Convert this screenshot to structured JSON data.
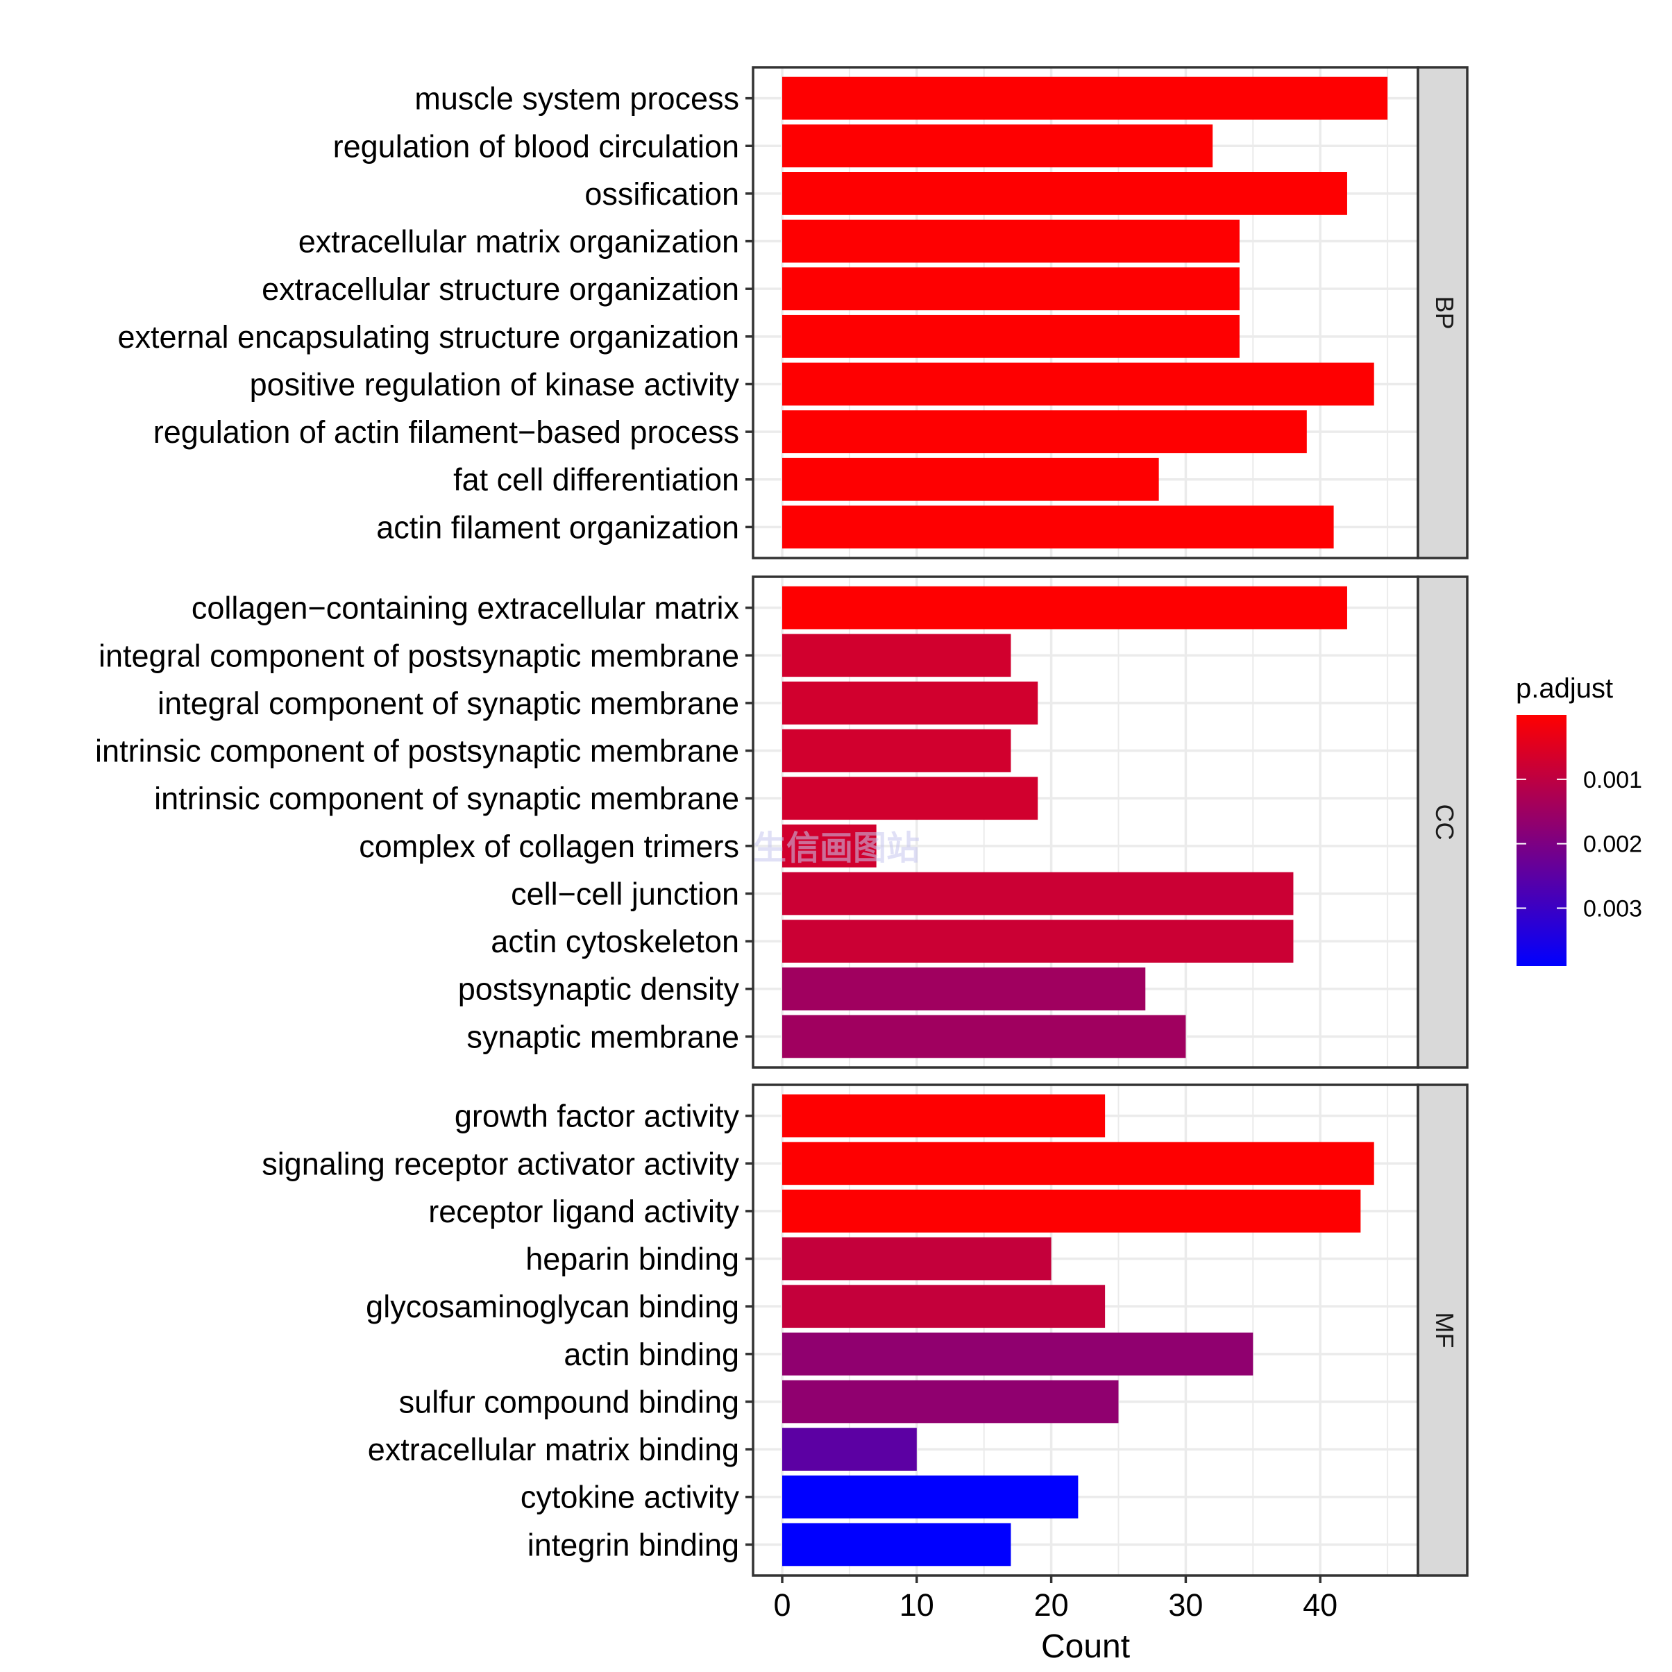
{
  "chart_data": {
    "type": "bar",
    "orientation": "horizontal",
    "xlabel": "Count",
    "ylabel": "",
    "xlim": [
      0,
      47.5
    ],
    "xticks": [
      0,
      10,
      20,
      30,
      40
    ],
    "grid": true,
    "legend": {
      "title": "p.adjust",
      "placement": "right",
      "type": "colorbar",
      "low_color": "#FF0000",
      "high_color": "#0000FF",
      "range": [
        0.0,
        0.0039
      ],
      "ticks": [
        0.001,
        0.002,
        0.003
      ],
      "tick_labels": [
        "0.001",
        "0.002",
        "0.003"
      ]
    },
    "facets": [
      {
        "name": "BP",
        "categories": [
          "muscle system process",
          "regulation of blood circulation",
          "ossification",
          "extracellular matrix organization",
          "extracellular structure organization",
          "external encapsulating structure organization",
          "positive regulation of kinase activity",
          "regulation of actin filament−based process",
          "fat cell differentiation",
          "actin filament organization"
        ],
        "values": [
          45,
          32,
          42,
          34,
          34,
          34,
          44,
          39,
          28,
          41
        ],
        "p_adjust": [
          1e-05,
          1e-05,
          1e-05,
          1e-05,
          1e-05,
          1e-05,
          1e-05,
          1e-05,
          1e-05,
          1e-05
        ]
      },
      {
        "name": "CC",
        "categories": [
          "collagen−containing extracellular matrix",
          "integral component of postsynaptic membrane",
          "integral component of synaptic membrane",
          "intrinsic component of postsynaptic membrane",
          "intrinsic component of synaptic membrane",
          "complex of collagen trimers",
          "cell−cell junction",
          "actin cytoskeleton",
          "postsynaptic density",
          "synaptic membrane"
        ],
        "values": [
          42,
          17,
          19,
          17,
          19,
          7,
          38,
          38,
          27,
          30
        ],
        "p_adjust": [
          1e-05,
          0.0007,
          0.0007,
          0.0007,
          0.0007,
          0.0007,
          0.0008,
          0.0008,
          0.00145,
          0.00145
        ]
      },
      {
        "name": "MF",
        "categories": [
          "growth factor activity",
          "signaling receptor activator activity",
          "receptor ligand activity",
          "heparin binding",
          "glycosaminoglycan binding",
          "actin binding",
          "sulfur compound binding",
          "extracellular matrix binding",
          "cytokine activity",
          "integrin binding"
        ],
        "values": [
          24,
          44,
          43,
          20,
          24,
          35,
          25,
          10,
          22,
          17
        ],
        "p_adjust": [
          1e-05,
          1e-05,
          1e-05,
          0.0009,
          0.0009,
          0.0017,
          0.0017,
          0.0025,
          0.0039,
          0.0039
        ]
      }
    ]
  },
  "watermark": "生信画图站",
  "colors": {
    "panel_border": "#333333",
    "strip_fill": "#D9D9D9",
    "grid": "#EBEBEB"
  }
}
